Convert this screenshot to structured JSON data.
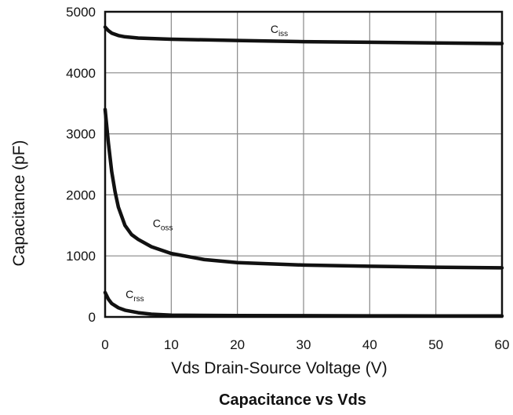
{
  "chart_data": {
    "type": "line",
    "title": "Capacitance vs Vds",
    "xlabel": "Vds Drain-Source Voltage (V)",
    "ylabel": "Capacitance (pF)",
    "xlim": [
      0,
      60
    ],
    "ylim": [
      0,
      5000
    ],
    "xticks": [
      0,
      10,
      20,
      30,
      40,
      50,
      60
    ],
    "yticks": [
      0,
      1000,
      2000,
      3000,
      4000,
      5000
    ],
    "grid": true,
    "legend": "none",
    "series": [
      {
        "name": "Ciss",
        "label_main": "C",
        "label_sub": "iss",
        "label_at": [
          25,
          4650
        ],
        "color": "#111111",
        "x": [
          0,
          0.5,
          1,
          2,
          3,
          5,
          10,
          20,
          30,
          40,
          50,
          60
        ],
        "y": [
          4750,
          4690,
          4650,
          4610,
          4590,
          4570,
          4550,
          4530,
          4510,
          4500,
          4490,
          4480
        ]
      },
      {
        "name": "Coss",
        "label_main": "C",
        "label_sub": "oss",
        "label_at": [
          7.2,
          1470
        ],
        "color": "#111111",
        "x": [
          0,
          0.5,
          1,
          1.5,
          2,
          3,
          4,
          5,
          7,
          10,
          15,
          20,
          30,
          40,
          50,
          60
        ],
        "y": [
          3400,
          2850,
          2380,
          2050,
          1800,
          1500,
          1350,
          1270,
          1150,
          1040,
          940,
          890,
          850,
          830,
          815,
          805
        ]
      },
      {
        "name": "Crss",
        "label_main": "C",
        "label_sub": "rss",
        "label_at": [
          3.1,
          310
        ],
        "color": "#111111",
        "x": [
          0,
          0.5,
          1,
          2,
          3,
          5,
          7,
          10,
          20,
          30,
          40,
          50,
          60
        ],
        "y": [
          400,
          290,
          220,
          150,
          110,
          70,
          45,
          30,
          22,
          20,
          18,
          17,
          16
        ]
      }
    ]
  }
}
